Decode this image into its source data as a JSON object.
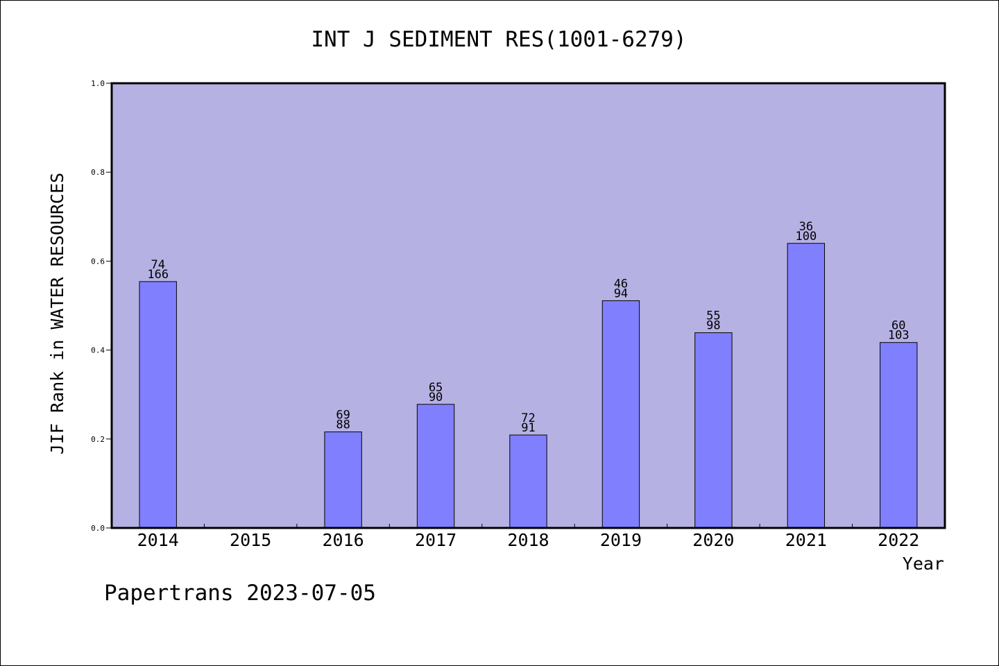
{
  "chart_data": {
    "type": "bar",
    "title": "INT J SEDIMENT RES(1001-6279)",
    "xlabel": "Year",
    "ylabel": "JIF Rank in WATER RESOURCES",
    "ylim": [
      0,
      1.0
    ],
    "yticks": [
      "0.0",
      "0.2",
      "0.4",
      "0.6",
      "0.8",
      "1.0"
    ],
    "categories": [
      "2014",
      "2015",
      "2016",
      "2017",
      "2018",
      "2019",
      "2020",
      "2021",
      "2022"
    ],
    "values": [
      0.554,
      null,
      0.216,
      0.278,
      0.209,
      0.511,
      0.439,
      0.64,
      0.417
    ],
    "labels_top": [
      "74",
      "",
      "69",
      "65",
      "72",
      "46",
      "55",
      "36",
      "60"
    ],
    "labels_bottom": [
      "166",
      "",
      "88",
      "90",
      "91",
      "94",
      "98",
      "100",
      "103"
    ],
    "grid": false,
    "colors": {
      "plot_background": "#b6b1e3",
      "bar_fill": "#8080ff",
      "bar_stroke": "#000000"
    }
  },
  "footer": {
    "watermark": "Papertrans 2023-07-05"
  }
}
